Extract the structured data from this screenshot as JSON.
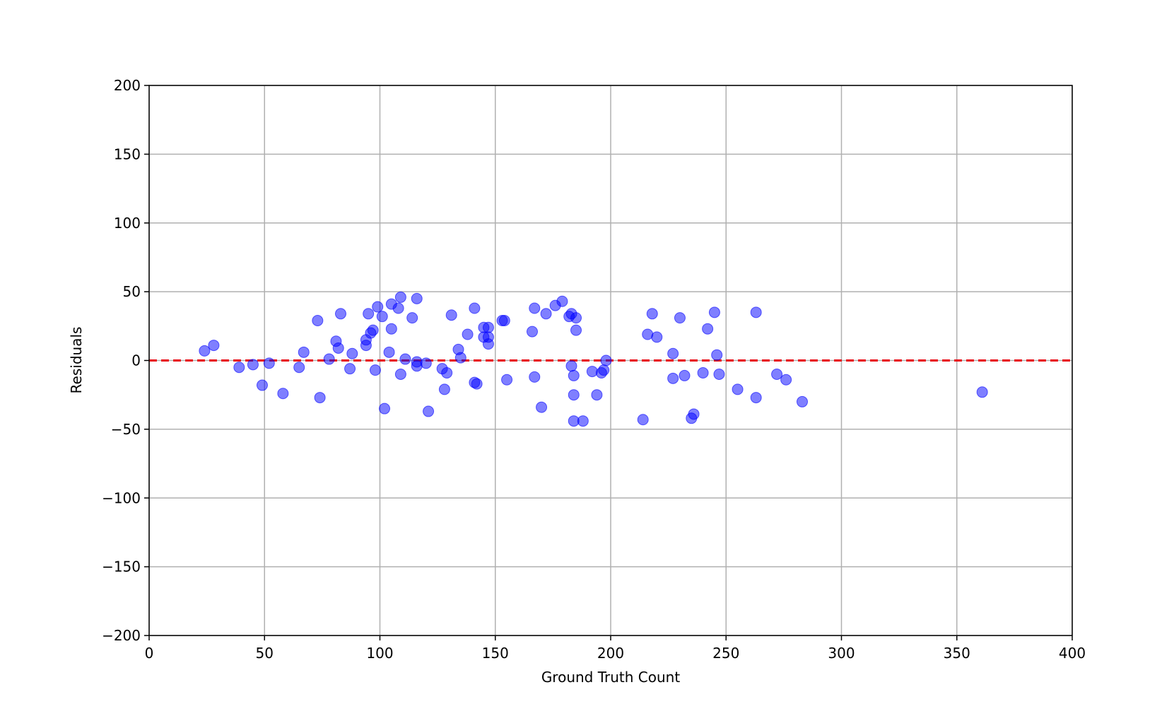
{
  "chart_data": {
    "type": "scatter",
    "xlabel": "Ground Truth Count",
    "ylabel": "Residuals",
    "xlim": [
      0,
      400
    ],
    "ylim": [
      -200,
      200
    ],
    "xticks": [
      0,
      50,
      100,
      150,
      200,
      250,
      300,
      350,
      400
    ],
    "yticks": [
      {
        "value": -200,
        "label": "−200"
      },
      {
        "value": -150,
        "label": "−150"
      },
      {
        "value": -100,
        "label": "−100"
      },
      {
        "value": -50,
        "label": "−50"
      },
      0,
      50,
      100,
      150,
      200
    ],
    "grid": true,
    "reference_line": {
      "y": 0,
      "color": "#e8000b",
      "dashed": true
    },
    "series": [
      {
        "color": "#0000ff",
        "x": [
          24,
          28,
          39,
          45,
          49,
          52,
          58,
          65,
          67,
          73,
          74,
          78,
          81,
          82,
          83,
          87,
          88,
          94,
          94,
          95,
          96,
          97,
          98,
          99,
          101,
          102,
          104,
          105,
          105,
          108,
          109,
          109,
          111,
          114,
          116,
          116,
          116,
          120,
          121,
          127,
          128,
          129,
          131,
          134,
          135,
          138,
          141,
          141,
          142,
          145,
          145,
          147,
          147,
          147,
          153,
          154,
          155,
          166,
          167,
          167,
          170,
          172,
          176,
          179,
          182,
          183,
          183,
          184,
          184,
          184,
          185,
          185,
          188,
          192,
          194,
          196,
          197,
          198,
          214,
          216,
          218,
          220,
          227,
          227,
          230,
          232,
          235,
          236,
          240,
          242,
          245,
          246,
          247,
          255,
          263,
          263,
          272,
          276,
          283,
          361
        ],
        "values": [
          7,
          11,
          -5,
          -3,
          -18,
          -2,
          -24,
          -5,
          6,
          29,
          -27,
          1,
          14,
          9,
          34,
          -6,
          5,
          11,
          15,
          34,
          20,
          22,
          -7,
          39,
          32,
          -35,
          6,
          41,
          23,
          38,
          46,
          -10,
          1,
          31,
          45,
          -1,
          -4,
          -2,
          -37,
          -6,
          -21,
          -9,
          33,
          8,
          2,
          19,
          38,
          -16,
          -17,
          24,
          17,
          24,
          17,
          12,
          29,
          29,
          -14,
          21,
          38,
          -12,
          -34,
          34,
          40,
          43,
          32,
          34,
          -4,
          -44,
          -25,
          -11,
          22,
          31,
          -44,
          -8,
          -25,
          -9,
          -7,
          0,
          -43,
          19,
          34,
          17,
          5,
          -13,
          31,
          -11,
          -42,
          -39,
          -9,
          23,
          35,
          4,
          -10,
          -21,
          35,
          -27,
          -10,
          -14,
          -30,
          -23
        ]
      }
    ]
  }
}
